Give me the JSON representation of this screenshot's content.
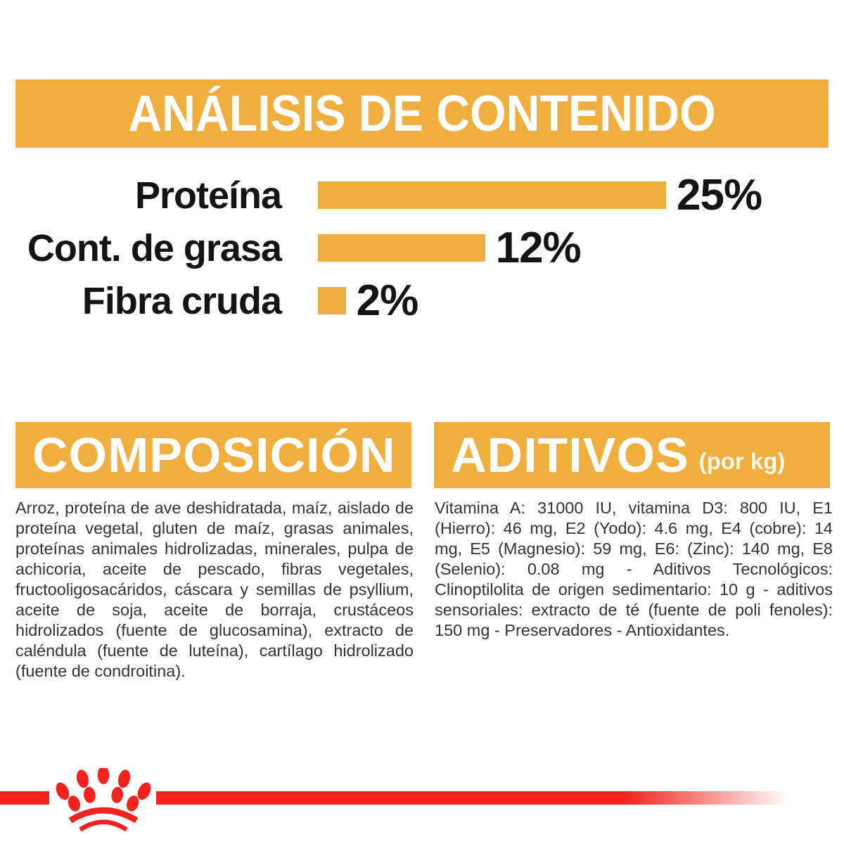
{
  "colors": {
    "gold": "#EFAE3E",
    "red": "#F2221D",
    "title_text": "#FFFFFF",
    "label_text": "#141414",
    "body_text": "#333333"
  },
  "analysis": {
    "title": "ANÁLISIS DE CONTENIDO"
  },
  "chart_data": {
    "type": "bar",
    "orientation": "horizontal",
    "title": "ANÁLISIS DE CONTENIDO",
    "categories": [
      "Proteína",
      "Cont. de grasa",
      "Fibra cruda"
    ],
    "values": [
      25,
      12,
      2
    ],
    "value_labels": [
      "25%",
      "12%",
      "2%"
    ],
    "unit": "%",
    "xlim": [
      0,
      25
    ],
    "bar_color": "#EFAE3E",
    "grid": false,
    "legend": false
  },
  "composition": {
    "title": "COMPOSICIÓN",
    "body": "Arroz, proteína de ave deshidratada, maíz, aislado de proteína vegetal, gluten de maíz, grasas animales, proteínas animales hidrolizadas, minerales, pulpa de achicoria, aceite de pescado, fibras vegetales, fructooligosacáridos, cáscara y semillas de psyllium, aceite de soja, aceite de borraja, crustáceos hidrolizados (fuente de glucosamina), extracto de caléndula (fuente de luteína), cartílago hidrolizado (fuente de condroitina)."
  },
  "additives": {
    "title": "ADITIVOS",
    "title_suffix": "(por kg)",
    "body": "Vitamina A: 31000 IU, vitamina D3: 800 IU, E1 (Hierro): 46 mg, E2 (Yodo): 4.6 mg, E4 (cobre): 14 mg, E5 (Magnesio): 59 mg, E6: (Zinc): 140 mg, E8 (Selenio): 0.08 mg - Aditivos Tecnológicos: Clinoptilolita de origen sedimentario: 10 g - aditivos sensoriales: extracto de té (fuente de poli fenoles): 150 mg - Preservadores - Antioxidantes."
  },
  "footer": {
    "logo": "royal-canin-crown"
  }
}
